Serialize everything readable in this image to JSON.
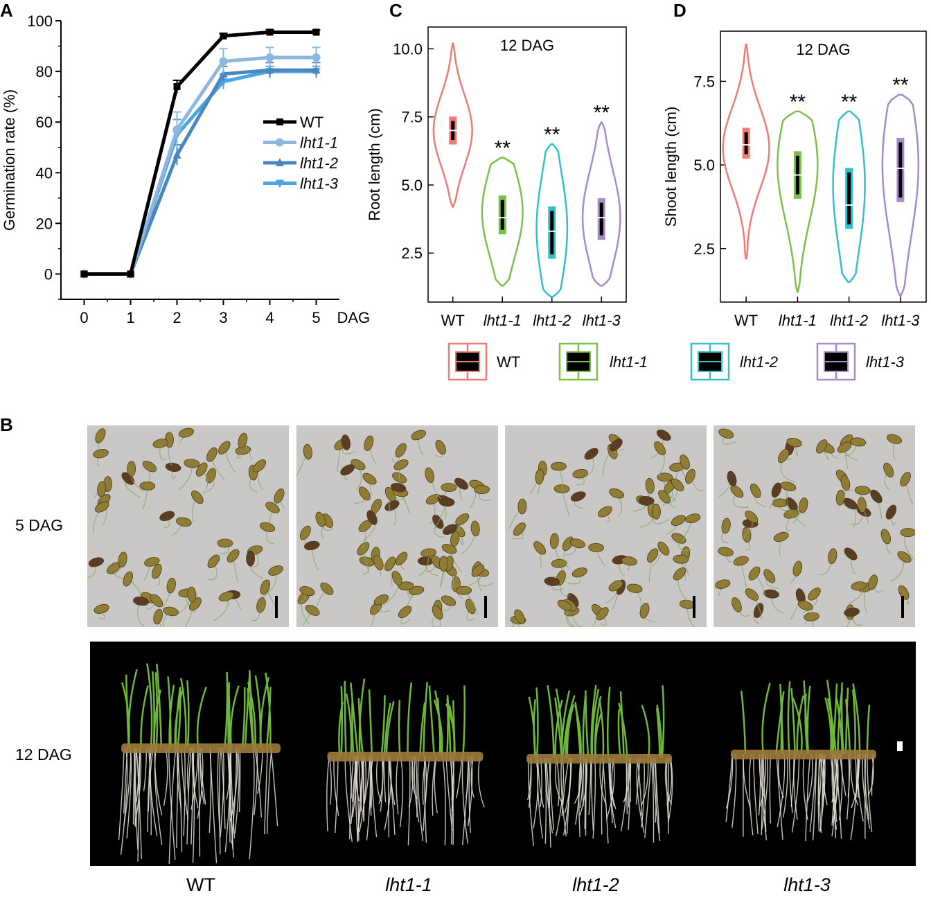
{
  "panels": {
    "A": "A",
    "B": "B",
    "C": "C",
    "D": "D"
  },
  "chart_data": [
    {
      "type": "line",
      "panel": "A",
      "title": "",
      "xlabel": "DAG",
      "ylabel": "Germination rate (%)",
      "x": [
        0,
        1,
        2,
        3,
        4,
        5
      ],
      "xlim": [
        -0.5,
        5.5
      ],
      "ylim": [
        -10,
        100
      ],
      "yticks": [
        0,
        20,
        40,
        60,
        80,
        100
      ],
      "series": [
        {
          "name": "WT",
          "color": "#000000",
          "marker": "square",
          "values": [
            0,
            0,
            74,
            94,
            95.5,
            95.5
          ],
          "err": [
            0,
            0,
            2.5,
            1,
            1,
            0.8
          ]
        },
        {
          "name": "lht1-1",
          "color": "#8fb6de",
          "marker": "circle",
          "values": [
            0,
            0,
            57,
            84,
            85.5,
            85.5
          ],
          "err": [
            0,
            0,
            7,
            5,
            4,
            4
          ]
        },
        {
          "name": "lht1-2",
          "color": "#4a86c0",
          "marker": "triangle-up",
          "values": [
            0,
            0,
            47,
            79,
            80.5,
            80.5
          ],
          "err": [
            0,
            0,
            4,
            3,
            3,
            3
          ]
        },
        {
          "name": "lht1-3",
          "color": "#4aa6e0",
          "marker": "triangle-down",
          "values": [
            0,
            0,
            55,
            76,
            80,
            80
          ],
          "err": [
            0,
            0,
            6,
            3,
            2,
            2
          ]
        }
      ]
    },
    {
      "type": "violin",
      "panel": "C",
      "annotation": "12 DAG",
      "ylabel": "Root length (cm)",
      "categories": [
        "WT",
        "lht1-1",
        "lht1-2",
        "lht1-3"
      ],
      "ylim": [
        0.7,
        10.8
      ],
      "yticks": [
        "2.5",
        "5.0",
        "7.5",
        "10.0"
      ],
      "significance": [
        "",
        "**",
        "**",
        "**"
      ],
      "groups": [
        {
          "name": "WT",
          "color": "#f07b72",
          "min": 4.2,
          "max": 10.2,
          "q1": 6.5,
          "median": 7.0,
          "q3": 7.5,
          "mode": 7.0,
          "maxwidth": 0.78
        },
        {
          "name": "lht1-1",
          "color": "#7cc04b",
          "min": 1.3,
          "max": 6.0,
          "q1": 3.2,
          "median": 3.8,
          "q3": 4.6,
          "mode": 4.0,
          "maxwidth": 0.82
        },
        {
          "name": "lht1-2",
          "color": "#33c0c8",
          "min": 0.9,
          "max": 6.5,
          "q1": 2.3,
          "median": 3.3,
          "q3": 4.2,
          "mode": 3.4,
          "maxwidth": 0.62
        },
        {
          "name": "lht1-3",
          "color": "#a78ac8",
          "min": 1.3,
          "max": 7.3,
          "q1": 3.0,
          "median": 3.8,
          "q3": 4.5,
          "mode": 3.8,
          "maxwidth": 0.76
        }
      ]
    },
    {
      "type": "violin",
      "panel": "D",
      "annotation": "12 DAG",
      "ylabel": "Shoot length (cm)",
      "categories": [
        "WT",
        "lht1-1",
        "lht1-2",
        "lht1-3"
      ],
      "ylim": [
        0.9,
        9.0
      ],
      "yticks": [
        "2.5",
        "5.0",
        "7.5"
      ],
      "significance": [
        "",
        "**",
        "**",
        "**"
      ],
      "groups": [
        {
          "name": "WT",
          "color": "#f07b72",
          "min": 2.2,
          "max": 8.6,
          "q1": 5.2,
          "median": 5.6,
          "q3": 6.1,
          "mode": 5.5,
          "maxwidth": 0.9
        },
        {
          "name": "lht1-1",
          "color": "#7cc04b",
          "min": 1.2,
          "max": 6.6,
          "q1": 4.0,
          "median": 4.7,
          "q3": 5.4,
          "mode": 5.0,
          "maxwidth": 0.78
        },
        {
          "name": "lht1-2",
          "color": "#33c0c8",
          "min": 1.5,
          "max": 6.6,
          "q1": 3.1,
          "median": 3.8,
          "q3": 4.9,
          "mode": 4.4,
          "maxwidth": 0.62
        },
        {
          "name": "lht1-3",
          "color": "#a78ac8",
          "min": 1.1,
          "max": 7.1,
          "q1": 3.9,
          "median": 4.9,
          "q3": 5.8,
          "mode": 5.0,
          "maxwidth": 0.7
        }
      ]
    }
  ],
  "violin_legend": [
    {
      "name": "WT",
      "color": "#f07b72"
    },
    {
      "name": "lht1-1",
      "color": "#7cc04b"
    },
    {
      "name": "lht1-2",
      "color": "#33c0c8"
    },
    {
      "name": "lht1-3",
      "color": "#a78ac8"
    }
  ],
  "photos": {
    "row1_label": "5  DAG",
    "row2_label": "12 DAG",
    "genotypes": [
      "WT",
      "lht1-1",
      "lht1-2",
      "lht1-3"
    ],
    "seed_counts": [
      55,
      70,
      60,
      60
    ],
    "plant_counts": [
      30,
      26,
      28,
      24
    ]
  }
}
